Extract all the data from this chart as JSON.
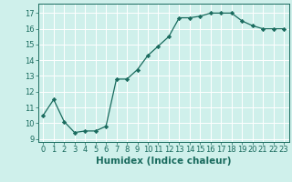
{
  "x": [
    0,
    1,
    2,
    3,
    4,
    5,
    6,
    7,
    8,
    9,
    10,
    11,
    12,
    13,
    14,
    15,
    16,
    17,
    18,
    19,
    20,
    21,
    22,
    23
  ],
  "y": [
    10.5,
    11.5,
    10.1,
    9.4,
    9.5,
    9.5,
    9.8,
    12.8,
    12.8,
    13.4,
    14.3,
    14.9,
    15.5,
    16.7,
    16.7,
    16.8,
    17.0,
    17.0,
    17.0,
    16.5,
    16.2,
    16.0,
    16.0,
    16.0
  ],
  "line_color": "#1a6b5e",
  "marker": "D",
  "marker_size": 2.2,
  "bg_color": "#cff0eb",
  "grid_color": "#ffffff",
  "xlabel": "Humidex (Indice chaleur)",
  "xlim": [
    -0.5,
    23.5
  ],
  "ylim": [
    8.8,
    17.6
  ],
  "yticks": [
    9,
    10,
    11,
    12,
    13,
    14,
    15,
    16,
    17
  ],
  "xticks": [
    0,
    1,
    2,
    3,
    4,
    5,
    6,
    7,
    8,
    9,
    10,
    11,
    12,
    13,
    14,
    15,
    16,
    17,
    18,
    19,
    20,
    21,
    22,
    23
  ],
  "tick_label_fontsize": 6.0,
  "xlabel_fontsize": 7.5
}
